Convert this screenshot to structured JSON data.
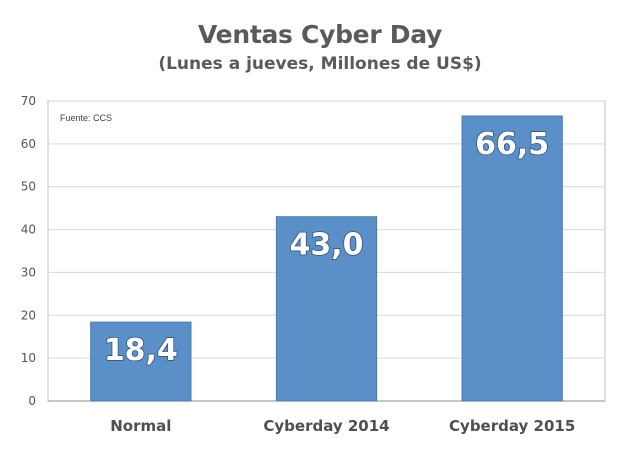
{
  "chart_data": {
    "type": "bar",
    "title": "Ventas Cyber Day",
    "subtitle": "(Lunes a jueves, Millones de US$)",
    "source": "Fuente: CCS",
    "categories": [
      "Normal",
      "Cyberday 2014",
      "Cyberday 2015"
    ],
    "values": [
      18.4,
      43.0,
      66.5
    ],
    "data_labels": [
      "18,4",
      "43,0",
      "66,5"
    ],
    "ylim": [
      0,
      70
    ],
    "yticks": [
      0,
      10,
      20,
      30,
      40,
      50,
      60,
      70
    ],
    "xlabel": "",
    "ylabel": "",
    "grid": true,
    "legend": "none",
    "bar_color": "#5b8fc7",
    "bar_edge_color": "#4a7ab0",
    "grid_color": "#d9d9d9",
    "axis_color": "#8c8c8c"
  }
}
